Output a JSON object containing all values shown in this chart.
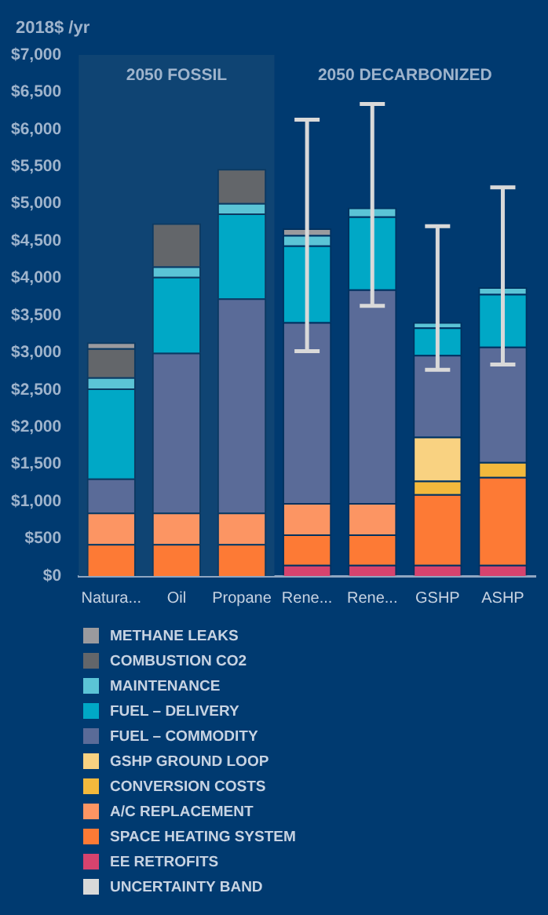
{
  "chart_data": {
    "type": "bar",
    "stacked": true,
    "ylabel": "2018$ /yr",
    "categories": [
      "Natura...",
      "Oil",
      "Propane",
      "Rene...",
      "Rene...",
      "GSHP",
      "ASHP"
    ],
    "series": [
      {
        "name": "EE RETROFITS",
        "color": "#d6436e",
        "values": [
          0,
          0,
          0,
          150,
          150,
          150,
          150
        ]
      },
      {
        "name": "SPACE HEATING SYSTEM",
        "color": "#fd7a35",
        "values": [
          430,
          430,
          430,
          410,
          410,
          950,
          1180
        ]
      },
      {
        "name": "A/C REPLACEMENT",
        "color": "#fc9563",
        "values": [
          420,
          420,
          420,
          420,
          420,
          0,
          0
        ]
      },
      {
        "name": "CONVERSION COSTS",
        "color": "#f3b93c",
        "values": [
          0,
          0,
          0,
          0,
          0,
          180,
          200
        ]
      },
      {
        "name": "GSHP GROUND LOOP",
        "color": "#f9d281",
        "values": [
          0,
          0,
          0,
          0,
          0,
          590,
          0
        ]
      },
      {
        "name": "FUEL – COMMODITY",
        "color": "#5a6b98",
        "values": [
          460,
          2150,
          2880,
          2430,
          2870,
          1100,
          1550
        ]
      },
      {
        "name": "FUEL – DELIVERY",
        "color": "#00a8c6",
        "values": [
          1210,
          1020,
          1140,
          1030,
          980,
          370,
          710
        ]
      },
      {
        "name": "MAINTENANCE",
        "color": "#5bc4d6",
        "values": [
          150,
          140,
          140,
          140,
          120,
          70,
          90
        ],
        "errors": [
          null,
          null,
          null,
          [
            3020,
            6130
          ],
          [
            3630,
            6340
          ],
          [
            2770,
            4700
          ],
          [
            2840,
            5220
          ]
        ]
      },
      {
        "name": "COMBUSTION CO2",
        "color": "#63666a",
        "values": [
          390,
          580,
          460,
          0,
          0,
          0,
          0
        ]
      },
      {
        "name": "METHANE LEAKS",
        "color": "#9a9a9e",
        "values": [
          80,
          0,
          0,
          90,
          0,
          0,
          0
        ]
      },
      {
        "name": "UNCERTAINTY BAND",
        "color": "#d9d9d9",
        "values": [
          null,
          null,
          null,
          null,
          null,
          null,
          null
        ]
      }
    ],
    "ylim": [
      0,
      7000
    ],
    "yticks": [
      {
        "value": 0,
        "label": "$0"
      },
      {
        "value": 500,
        "label": "$500"
      },
      {
        "value": 1000,
        "label": "$1,000"
      },
      {
        "value": 1500,
        "label": "$1,500"
      },
      {
        "value": 2000,
        "label": "$2,000"
      },
      {
        "value": 2500,
        "label": "$2,500"
      },
      {
        "value": 3000,
        "label": "$3,000"
      },
      {
        "value": 3500,
        "label": "$3,500"
      },
      {
        "value": 4000,
        "label": "$4,000"
      },
      {
        "value": 4500,
        "label": "$4,500"
      },
      {
        "value": 5000,
        "label": "$5,000"
      },
      {
        "value": 5500,
        "label": "$5,500"
      },
      {
        "value": 6000,
        "label": "$6,000"
      },
      {
        "value": 6500,
        "label": "$6,500"
      },
      {
        "value": 7000,
        "label": "$7,000"
      }
    ],
    "bands": [
      {
        "axis": "x",
        "from": "Natura...",
        "to": "Propane",
        "label": "2050 FOSSIL",
        "color": "#0f4473"
      }
    ],
    "annotations": [
      "2050 DECARBONIZED"
    ],
    "grid": false,
    "legend": "bottom"
  }
}
